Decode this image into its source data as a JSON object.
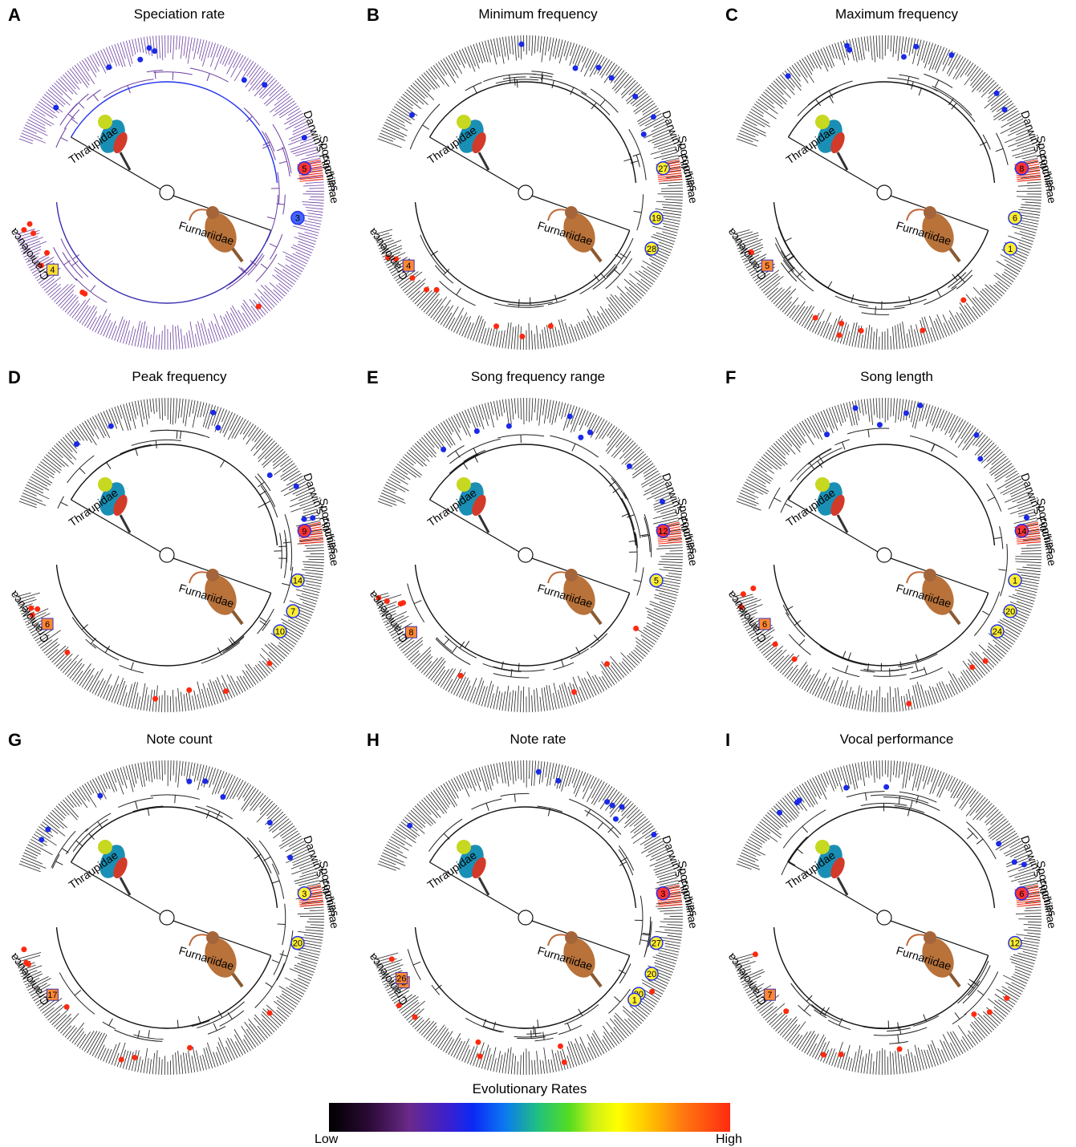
{
  "panels": [
    {
      "label": "A",
      "title": "Speciation rate",
      "tint": "#6b3fa0",
      "markers": [
        [
          "5",
          "#ff3333",
          "circle"
        ],
        [
          "3",
          "#4466ff",
          "circle"
        ],
        [
          "4",
          "#ffdd33",
          "diamond"
        ]
      ]
    },
    {
      "label": "B",
      "title": "Minimum frequency",
      "tint": "#222222",
      "markers": [
        [
          "27",
          "#ffee33",
          "circle"
        ],
        [
          "19",
          "#ffee33",
          "circle"
        ],
        [
          "28",
          "#ffee33",
          "circle"
        ],
        [
          "4",
          "#ff8833",
          "diamond"
        ]
      ]
    },
    {
      "label": "C",
      "title": "Maximum frequency",
      "tint": "#222222",
      "markers": [
        [
          "8",
          "#ff3333",
          "circle"
        ],
        [
          "6",
          "#ffee33",
          "circle"
        ],
        [
          "1",
          "#ffee33",
          "circle"
        ],
        [
          "5",
          "#ff8833",
          "diamond"
        ]
      ]
    },
    {
      "label": "D",
      "title": "Peak frequency",
      "tint": "#222222",
      "markers": [
        [
          "9",
          "#ff3333",
          "circle"
        ],
        [
          "14",
          "#ffee33",
          "circle"
        ],
        [
          "7",
          "#ffee33",
          "circle"
        ],
        [
          "10",
          "#ffee33",
          "circle"
        ],
        [
          "6",
          "#ff8833",
          "diamond"
        ]
      ]
    },
    {
      "label": "E",
      "title": "Song frequency range",
      "tint": "#222222",
      "markers": [
        [
          "12",
          "#ff3333",
          "circle"
        ],
        [
          "5",
          "#ffee33",
          "circle"
        ],
        [
          "8",
          "#ff8833",
          "diamond"
        ]
      ]
    },
    {
      "label": "F",
      "title": "Song length",
      "tint": "#222222",
      "markers": [
        [
          "14",
          "#ff3333",
          "circle"
        ],
        [
          "1",
          "#ffee33",
          "circle"
        ],
        [
          "20",
          "#ffee33",
          "circle"
        ],
        [
          "24",
          "#ffee33",
          "circle"
        ],
        [
          "6",
          "#ff8833",
          "diamond"
        ]
      ]
    },
    {
      "label": "G",
      "title": "Note count",
      "tint": "#222222",
      "markers": [
        [
          "3",
          "#ffee33",
          "circle"
        ],
        [
          "20",
          "#ffee33",
          "circle"
        ],
        [
          "17",
          "#ff8833",
          "diamond"
        ]
      ]
    },
    {
      "label": "H",
      "title": "Note rate",
      "tint": "#222222",
      "markers": [
        [
          "3",
          "#ff3333",
          "circle"
        ],
        [
          "27",
          "#ffee33",
          "circle"
        ],
        [
          "20",
          "#ffee33",
          "circle"
        ],
        [
          "30",
          "#ffee33",
          "circle"
        ],
        [
          "1",
          "#ffee33",
          "circle"
        ],
        [
          "3",
          "#ff8833",
          "diamond"
        ],
        [
          "26",
          "#ff8833",
          "diamond"
        ]
      ]
    },
    {
      "label": "I",
      "title": "Vocal performance",
      "tint": "#222222",
      "markers": [
        [
          "6",
          "#ff3333",
          "circle"
        ],
        [
          "12",
          "#ffee33",
          "circle"
        ],
        [
          "7",
          "#ff8833",
          "diamond"
        ]
      ]
    }
  ],
  "clade_labels": {
    "thraupidae": "Thraupidae",
    "furnariidae": "Furnariidae",
    "darwins": "Darwin's Finches",
    "sporophilinae": "Sporophilinae",
    "cranioleuca": "Cranioleuca"
  },
  "colorbar": {
    "title": "Evolutionary Rates",
    "low": "Low",
    "high": "High"
  },
  "colors": {
    "ring_line": "#111111",
    "high_rate": "#ff2a10",
    "low_rate": "#1a2ae8"
  }
}
